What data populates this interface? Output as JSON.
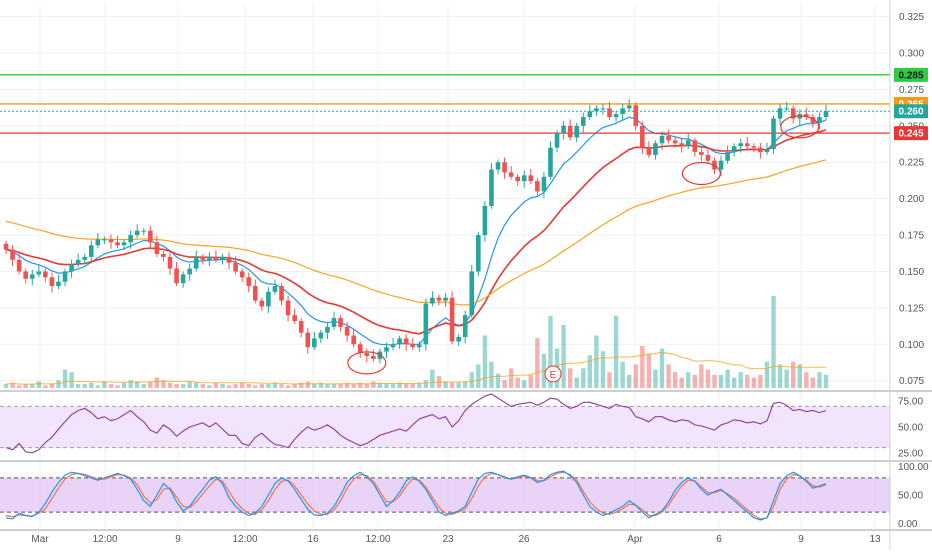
{
  "colors": {
    "up": "#26a69a",
    "down": "#ef5350",
    "ema_fast": "#2196f3",
    "ema_mid": "#e53935",
    "ema_slow": "#f5a623",
    "green_line": "#2ecc40",
    "orange_line": "#f39c12",
    "red_line": "#e53935",
    "rsi_line": "#8e3a9f",
    "stoch_k": "#2196f3",
    "stoch_d": "#ff7043",
    "band_fill": "#e1c6f5"
  },
  "chart_data": [
    {
      "type": "line",
      "panel": "price",
      "ylim": [
        0.07,
        0.335
      ],
      "y_ticks": [
        "0.325",
        "0.300",
        "0.275",
        "0.250",
        "0.225",
        "0.200",
        "0.175",
        "0.150",
        "0.125",
        "0.100",
        "0.075"
      ],
      "x_ticks": [
        "Mar",
        "12:00",
        "9",
        "12:00",
        "16",
        "12:00",
        "23",
        "26",
        "Apr",
        "6",
        "9",
        "13"
      ],
      "levels": [
        {
          "value": 0.285,
          "label": "0.285",
          "color": "#2ecc40"
        },
        {
          "value": 0.265,
          "label": "0.265",
          "color": "#f39c12"
        },
        {
          "value": 0.26,
          "label": "0.260",
          "color": "#26a69a"
        },
        {
          "value": 0.245,
          "label": "0.245",
          "color": "#e53935"
        }
      ],
      "close": [
        0.165,
        0.158,
        0.15,
        0.145,
        0.148,
        0.15,
        0.146,
        0.14,
        0.143,
        0.15,
        0.155,
        0.158,
        0.16,
        0.168,
        0.172,
        0.172,
        0.17,
        0.168,
        0.17,
        0.175,
        0.178,
        0.178,
        0.17,
        0.162,
        0.16,
        0.152,
        0.142,
        0.148,
        0.152,
        0.16,
        0.158,
        0.16,
        0.158,
        0.16,
        0.156,
        0.15,
        0.146,
        0.14,
        0.13,
        0.126,
        0.136,
        0.14,
        0.13,
        0.12,
        0.116,
        0.108,
        0.098,
        0.104,
        0.108,
        0.112,
        0.118,
        0.112,
        0.106,
        0.1,
        0.094,
        0.092,
        0.09,
        0.095,
        0.098,
        0.1,
        0.104,
        0.1,
        0.098,
        0.1,
        0.128,
        0.132,
        0.13,
        0.132,
        0.102,
        0.105,
        0.12,
        0.15,
        0.175,
        0.195,
        0.22,
        0.225,
        0.218,
        0.215,
        0.212,
        0.216,
        0.212,
        0.205,
        0.215,
        0.235,
        0.245,
        0.25,
        0.242,
        0.25,
        0.256,
        0.26,
        0.262,
        0.262,
        0.256,
        0.258,
        0.262,
        0.264,
        0.25,
        0.235,
        0.23,
        0.238,
        0.243,
        0.24,
        0.238,
        0.236,
        0.24,
        0.232,
        0.23,
        0.226,
        0.22,
        0.226,
        0.232,
        0.236,
        0.238,
        0.236,
        0.235,
        0.232,
        0.234,
        0.255,
        0.262,
        0.262,
        0.255,
        0.258,
        0.256,
        0.252,
        0.256,
        0.26
      ],
      "series": [
        {
          "name": "",
          "period": 9,
          "color": "#2196f3"
        },
        {
          "name": "",
          "period": 21,
          "color": "#e53935"
        },
        {
          "name": "",
          "period": 55,
          "color": "#f5a623",
          "start": 0.185
        }
      ],
      "volume": [
        3,
        4,
        2,
        3,
        3,
        5,
        2,
        3,
        6,
        14,
        12,
        3,
        3,
        4,
        2,
        5,
        3,
        2,
        4,
        6,
        5,
        3,
        5,
        8,
        6,
        4,
        3,
        3,
        5,
        4,
        3,
        2,
        4,
        3,
        2,
        3,
        4,
        3,
        2,
        3,
        3,
        4,
        3,
        2,
        3,
        4,
        5,
        3,
        4,
        3,
        3,
        3,
        4,
        3,
        4,
        3,
        5,
        4,
        3,
        3,
        4,
        3,
        3,
        4,
        6,
        14,
        9,
        5,
        4,
        4,
        5,
        12,
        18,
        40,
        20,
        11,
        6,
        15,
        8,
        6,
        10,
        38,
        26,
        55,
        30,
        48,
        15,
        8,
        15,
        25,
        40,
        28,
        12,
        55,
        20,
        10,
        18,
        32,
        26,
        14,
        30,
        18,
        12,
        8,
        12,
        10,
        18,
        14,
        10,
        10,
        14,
        8,
        12,
        10,
        8,
        10,
        20,
        70,
        18,
        14,
        20,
        18,
        12,
        8,
        12,
        10
      ],
      "annotations": [
        {
          "kind": "earnings",
          "label": "E"
        }
      ]
    },
    {
      "type": "line",
      "panel": "rsi",
      "ylim": [
        18,
        82
      ],
      "y_ticks": [
        "75.00",
        "50.00",
        "25.00"
      ],
      "band": [
        30,
        70
      ],
      "series": [
        {
          "name": "",
          "values": [
            30,
            28,
            34,
            26,
            25,
            28,
            35,
            40,
            48,
            55,
            62,
            66,
            68,
            64,
            58,
            60,
            56,
            58,
            62,
            66,
            60,
            55,
            47,
            44,
            52,
            48,
            41,
            46,
            50,
            52,
            54,
            50,
            54,
            48,
            42,
            42,
            34,
            32,
            40,
            44,
            38,
            33,
            32,
            30,
            38,
            45,
            50,
            47,
            49,
            52,
            48,
            42,
            38,
            35,
            32,
            34,
            38,
            42,
            44,
            46,
            48,
            46,
            52,
            58,
            60,
            62,
            58,
            60,
            50,
            56,
            66,
            72,
            76,
            80,
            82,
            78,
            74,
            70,
            72,
            73,
            74,
            71,
            74,
            78,
            77,
            72,
            68,
            70,
            74,
            74,
            72,
            70,
            68,
            72,
            70,
            69,
            60,
            58,
            55,
            60,
            60,
            57,
            55,
            57,
            56,
            52,
            51,
            49,
            47,
            52,
            54,
            57,
            56,
            54,
            55,
            53,
            56,
            73,
            74,
            71,
            66,
            67,
            65,
            66,
            64,
            66
          ]
        }
      ]
    },
    {
      "type": "line",
      "panel": "stochastic",
      "ylim": [
        -8,
        108
      ],
      "y_ticks": [
        "100.00",
        "50.00",
        "0.00"
      ],
      "band": [
        20,
        80
      ],
      "series": [
        {
          "name": "",
          "values": [
            10,
            8,
            18,
            14,
            12,
            20,
            35,
            55,
            72,
            85,
            90,
            88,
            84,
            80,
            76,
            80,
            84,
            88,
            84,
            78,
            60,
            40,
            30,
            50,
            70,
            60,
            38,
            22,
            30,
            46,
            60,
            76,
            82,
            70,
            45,
            30,
            20,
            14,
            18,
            30,
            50,
            70,
            80,
            75,
            60,
            42,
            25,
            15,
            14,
            18,
            30,
            50,
            72,
            84,
            90,
            82,
            70,
            50,
            30,
            40,
            55,
            75,
            82,
            74,
            60,
            40,
            20,
            14,
            18,
            22,
            30,
            55,
            78,
            88,
            90,
            86,
            80,
            78,
            82,
            85,
            80,
            72,
            76,
            86,
            90,
            92,
            84,
            72,
            50,
            30,
            20,
            14,
            18,
            24,
            30,
            40,
            32,
            20,
            10,
            16,
            22,
            38,
            58,
            72,
            80,
            74,
            60,
            50,
            56,
            60,
            50,
            40,
            30,
            20,
            10,
            6,
            10,
            40,
            70,
            84,
            90,
            84,
            74,
            62,
            66,
            70
          ]
        },
        {
          "name": "",
          "values": [
            14,
            12,
            15,
            14,
            13,
            18,
            26,
            44,
            62,
            78,
            86,
            88,
            86,
            82,
            78,
            78,
            82,
            86,
            85,
            80,
            68,
            48,
            36,
            42,
            60,
            62,
            46,
            30,
            28,
            38,
            52,
            66,
            78,
            74,
            56,
            38,
            26,
            18,
            16,
            24,
            40,
            60,
            74,
            76,
            66,
            50,
            34,
            22,
            16,
            16,
            24,
            40,
            62,
            78,
            86,
            84,
            74,
            56,
            38,
            38,
            48,
            66,
            78,
            76,
            64,
            46,
            28,
            18,
            16,
            20,
            26,
            44,
            66,
            82,
            88,
            86,
            82,
            78,
            80,
            83,
            81,
            75,
            75,
            82,
            88,
            90,
            86,
            76,
            56,
            38,
            26,
            18,
            16,
            20,
            26,
            34,
            32,
            24,
            14,
            14,
            20,
            32,
            50,
            66,
            76,
            75,
            64,
            54,
            54,
            58,
            52,
            44,
            34,
            24,
            14,
            8,
            10,
            30,
            60,
            78,
            86,
            84,
            76,
            66,
            64,
            68
          ]
        }
      ]
    }
  ]
}
